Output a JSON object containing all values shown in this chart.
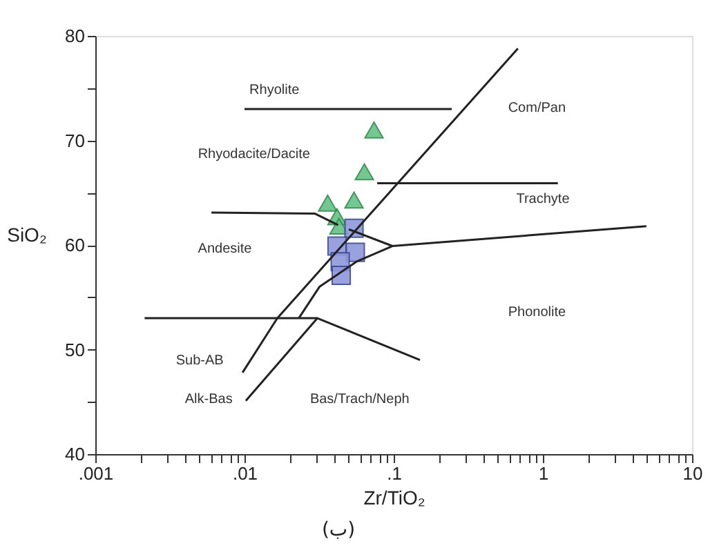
{
  "chart_data": {
    "type": "scatter",
    "xlabel": "Zr/TiO₂",
    "ylabel": "SiO₂",
    "log": "x",
    "grid": false,
    "xlim": [
      0.001,
      10
    ],
    "ylim": [
      40,
      80
    ],
    "xticks": [
      {
        "value": 0.001,
        "label": ".001"
      },
      {
        "value": 0.002,
        "label": null
      },
      {
        "value": 0.003,
        "label": null
      },
      {
        "value": 0.004,
        "label": null
      },
      {
        "value": 0.005,
        "label": null
      },
      {
        "value": 0.006,
        "label": null
      },
      {
        "value": 0.007,
        "label": null
      },
      {
        "value": 0.008,
        "label": null
      },
      {
        "value": 0.009,
        "label": null
      },
      {
        "value": 0.01,
        "label": ".01"
      },
      {
        "value": 0.02,
        "label": null
      },
      {
        "value": 0.03,
        "label": null
      },
      {
        "value": 0.04,
        "label": null
      },
      {
        "value": 0.05,
        "label": null
      },
      {
        "value": 0.06,
        "label": null
      },
      {
        "value": 0.07,
        "label": null
      },
      {
        "value": 0.08,
        "label": null
      },
      {
        "value": 0.09,
        "label": null
      },
      {
        "value": 0.1,
        "label": ".1"
      },
      {
        "value": 0.2,
        "label": null
      },
      {
        "value": 0.3,
        "label": null
      },
      {
        "value": 0.4,
        "label": null
      },
      {
        "value": 0.5,
        "label": null
      },
      {
        "value": 0.6,
        "label": null
      },
      {
        "value": 0.7,
        "label": null
      },
      {
        "value": 0.8,
        "label": null
      },
      {
        "value": 0.9,
        "label": null
      },
      1,
      {
        "value": 2,
        "label": null
      },
      {
        "value": 3,
        "label": null
      },
      {
        "value": 4,
        "label": null
      },
      {
        "value": 5,
        "label": null
      },
      {
        "value": 6,
        "label": null
      },
      {
        "value": 7,
        "label": null
      },
      {
        "value": 8,
        "label": null
      },
      {
        "value": 9,
        "label": null
      },
      10
    ],
    "yticks": [
      40,
      {
        "value": 45,
        "label": null
      },
      50,
      {
        "value": 55,
        "label": null
      },
      60,
      {
        "value": 65,
        "label": null
      },
      70,
      {
        "value": 75,
        "label": null
      },
      80
    ],
    "series": [
      {
        "marker": "triangle",
        "color": "#66c285",
        "x": [
          0.0738,
          0.0636,
          0.0361,
          0.0542,
          0.0417,
          0.043
        ],
        "values": [
          71.0,
          67.0,
          64.0,
          64.3,
          62.7,
          61.8
        ]
      },
      {
        "marker": "square",
        "color": "#8f98dc",
        "x": [
          0.0542,
          0.0417,
          0.0553,
          0.0438,
          0.0445
        ],
        "values": [
          61.6,
          59.9,
          59.3,
          58.4,
          57.1
        ]
      },
      {
        "type": "line",
        "color": "#222222",
        "x": [
          0.01,
          0.245
        ],
        "values": [
          73.0,
          73.0
        ]
      },
      {
        "type": "line",
        "color": "#222222",
        "x": [
          0.0097,
          0.0166,
          0.68
        ],
        "values": [
          47.8,
          53.0,
          78.8
        ]
      },
      {
        "type": "line",
        "color": "#222222",
        "x": [
          0.0102,
          0.0308,
          0.15
        ],
        "values": [
          45.1,
          53.0,
          49.0
        ]
      },
      {
        "type": "line",
        "color": "#222222",
        "x": [
          0.00214,
          0.0308
        ],
        "values": [
          53.0,
          53.0
        ]
      },
      {
        "type": "line",
        "color": "#222222",
        "x": [
          0.0231,
          0.0318,
          0.0562,
          0.098
        ],
        "values": [
          53.0,
          56.0,
          58.4,
          59.9
        ]
      },
      {
        "type": "line",
        "color": "#222222",
        "x": [
          0.006,
          0.0297,
          0.0424
        ],
        "values": [
          63.1,
          63.0,
          61.9
        ]
      },
      {
        "type": "line",
        "color": "#222222",
        "x": [
          0.05,
          0.098,
          4.94
        ],
        "values": [
          61.5,
          59.9,
          61.8
        ]
      },
      {
        "type": "line",
        "color": "#222222",
        "x": [
          0.0775,
          1.26
        ],
        "values": [
          65.9,
          65.9
        ]
      }
    ],
    "annotations": [
      "Rhyolite",
      "Rhyodacite/Dacite",
      "Andesite",
      "Com/Pan",
      "Trachyte",
      "Phonolite",
      "Sub-AB",
      "Alk-Bas",
      "Bas/Trach/Neph",
      "(ب)"
    ]
  }
}
